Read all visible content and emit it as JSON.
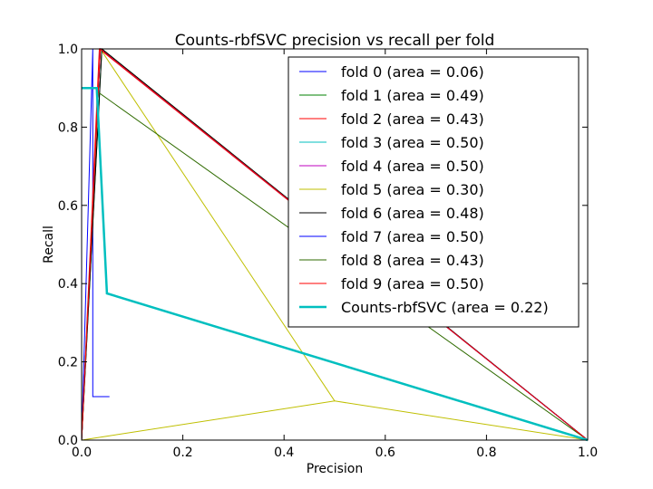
{
  "chart_data": {
    "type": "line",
    "title": "Counts-rbfSVC precision vs recall per fold",
    "xlabel": "Precision",
    "ylabel": "Recall",
    "xlim": [
      0.0,
      1.0
    ],
    "ylim": [
      0.0,
      1.0
    ],
    "xticks": [
      "0.0",
      "0.2",
      "0.4",
      "0.6",
      "0.8",
      "1.0"
    ],
    "yticks": [
      "0.0",
      "0.2",
      "0.4",
      "0.6",
      "0.8",
      "1.0"
    ],
    "grid": false,
    "legend_position": "upper right",
    "series": [
      {
        "name": "fold 0 (area = 0.06)",
        "color": "#0000ff",
        "width": 1,
        "x": [
          0.0,
          0.022,
          0.022,
          0.055,
          0.0
        ],
        "y": [
          1.0,
          0.111,
          0.111,
          0.111,
          0.0
        ],
        "path_x": [
          0.055,
          0.022,
          0.022,
          0.0
        ],
        "path_y": [
          0.111,
          0.111,
          1.0,
          0.0
        ]
      },
      {
        "name": "fold 1 (area = 0.49)",
        "color": "#008000",
        "width": 1,
        "path_x": [
          1.0,
          0.04,
          0.0
        ],
        "path_y": [
          0.0,
          1.0,
          0.0
        ]
      },
      {
        "name": "fold 2 (area = 0.43)",
        "color": "#ff0000",
        "width": 1,
        "path_x": [
          1.0,
          0.035,
          0.0
        ],
        "path_y": [
          0.0,
          1.0,
          0.0
        ]
      },
      {
        "name": "fold 3 (area = 0.50)",
        "color": "#00bfbf",
        "width": 1,
        "path_x": [
          1.0,
          0.037,
          0.0
        ],
        "path_y": [
          0.0,
          1.0,
          0.0
        ]
      },
      {
        "name": "fold 4 (area = 0.50)",
        "color": "#bf00bf",
        "width": 1,
        "path_x": [
          1.0,
          0.037,
          0.0
        ],
        "path_y": [
          0.0,
          1.0,
          0.0
        ]
      },
      {
        "name": "fold 5 (area = 0.30)",
        "color": "#bfbf00",
        "width": 1,
        "path_x": [
          1.0,
          0.5,
          0.0,
          0.0,
          0.037
        ],
        "path_y": [
          0.0,
          0.1,
          0.0,
          0.0,
          1.0
        ],
        "extra_x": [
          0.037,
          0.5
        ],
        "extra_y": [
          1.0,
          0.1
        ]
      },
      {
        "name": "fold 6 (area = 0.48)",
        "color": "#000000",
        "width": 1,
        "path_x": [
          1.0,
          0.04,
          0.0
        ],
        "path_y": [
          0.0,
          1.0,
          0.0
        ]
      },
      {
        "name": "fold 7 (area = 0.50)",
        "color": "#0000ff",
        "width": 1,
        "path_x": [
          1.0,
          0.037,
          0.0
        ],
        "path_y": [
          0.0,
          1.0,
          0.0
        ]
      },
      {
        "name": "fold 8 (area = 0.43)",
        "color": "#2f6b00",
        "width": 1,
        "path_x": [
          1.0,
          0.033,
          0.0
        ],
        "path_y": [
          0.0,
          0.889,
          0.0
        ]
      },
      {
        "name": "fold 9 (area = 0.50)",
        "color": "#ff0000",
        "width": 1,
        "path_x": [
          1.0,
          0.037,
          0.0
        ],
        "path_y": [
          0.0,
          1.0,
          0.0
        ]
      },
      {
        "name": "Counts-rbfSVC (area = 0.22)",
        "color": "#00bfbf",
        "width": 2.5,
        "path_x": [
          1.0,
          0.05,
          0.03,
          0.0
        ],
        "path_y": [
          0.0,
          0.375,
          0.9,
          0.9
        ]
      }
    ]
  }
}
